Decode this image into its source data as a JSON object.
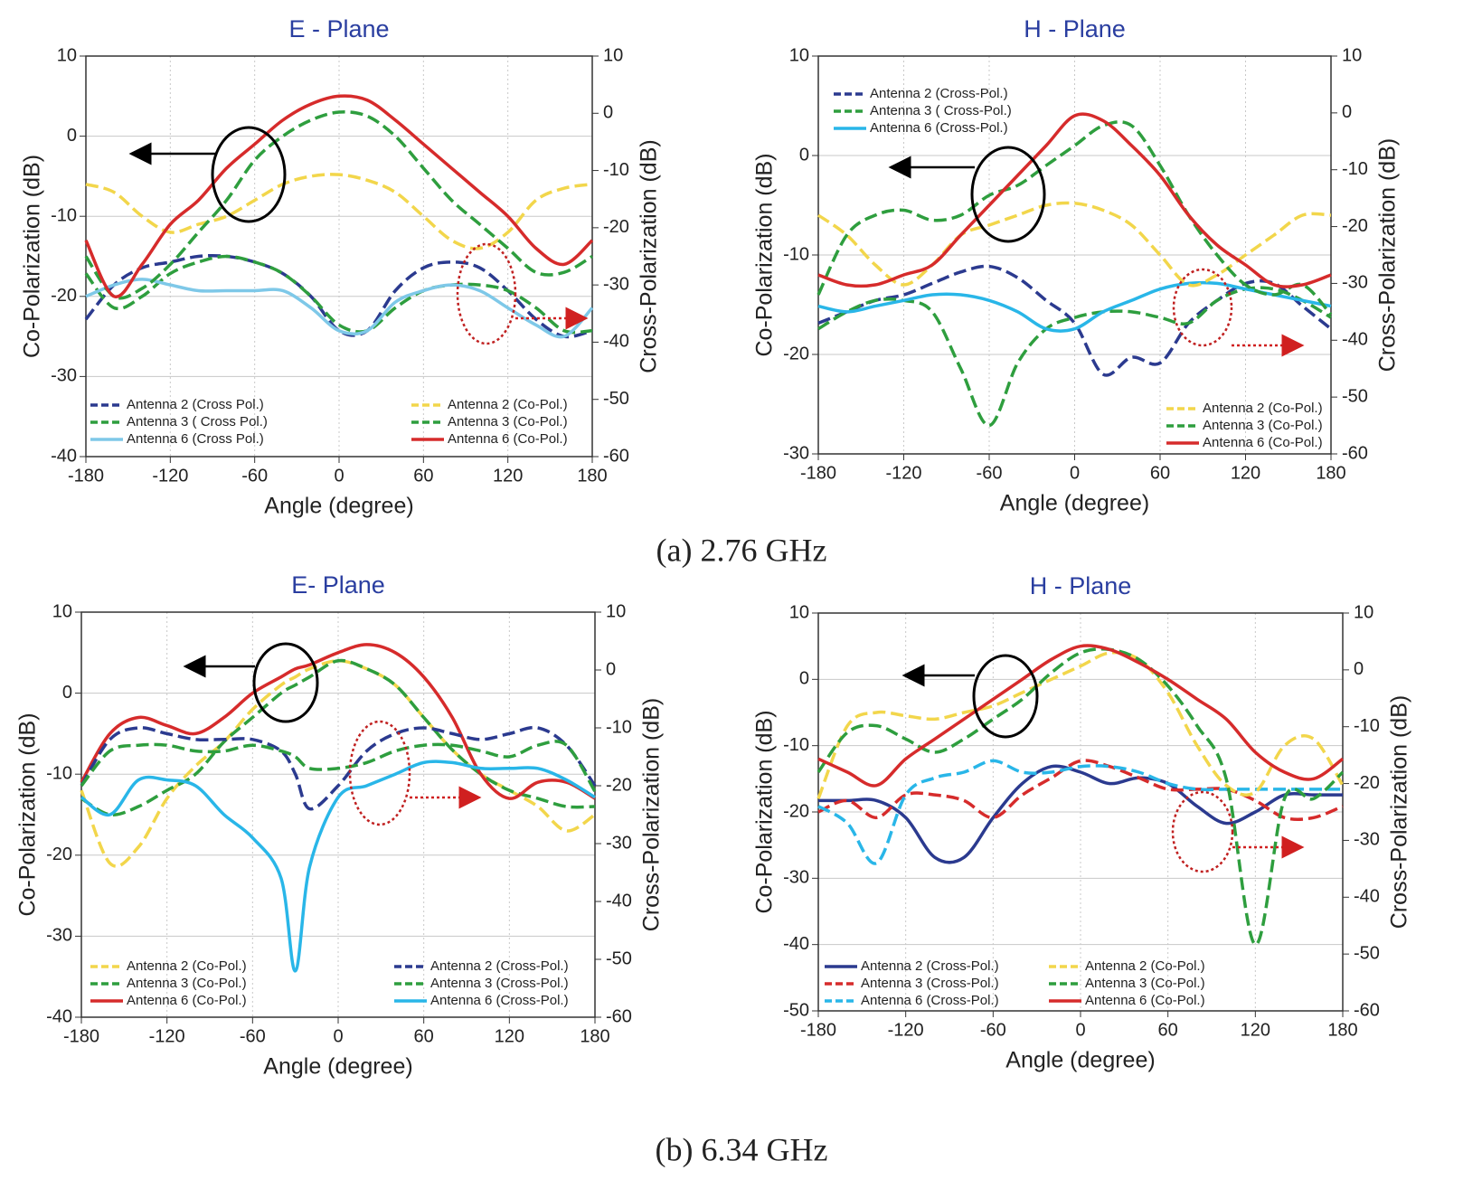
{
  "captions": [
    "(a) 2.76 GHz",
    "(b) 6.34 GHz"
  ],
  "chart_data": [
    {
      "type": "line",
      "title": "E - Plane",
      "xlabel": "Angle (degree)",
      "ylabel": "Co-Polarization (dB)",
      "y2label": "Cross-Polarization (dB)",
      "grid": true,
      "x": [
        -180,
        -160,
        -140,
        -120,
        -100,
        -80,
        -60,
        -40,
        -20,
        0,
        20,
        40,
        60,
        80,
        100,
        120,
        140,
        160,
        180
      ],
      "xlim": [
        -180,
        180
      ],
      "xticks": [
        -180,
        -120,
        -60,
        0,
        60,
        120,
        180
      ],
      "ylim": [
        -40,
        10
      ],
      "yticks": [
        -40,
        -30,
        -20,
        -10,
        0,
        10
      ],
      "y2lim": [
        -60,
        10
      ],
      "y2ticks": [
        -60,
        -50,
        -40,
        -30,
        -20,
        -10,
        0,
        10
      ],
      "series": [
        {
          "name": "Antenna 2 (Cross Pol.)",
          "color": "#2b3a8f",
          "dashed": true,
          "axis": "y2",
          "values": [
            -36,
            -30,
            -27,
            -26,
            -25,
            -25,
            -26,
            -28,
            -32,
            -38,
            -38,
            -31,
            -27,
            -26,
            -27,
            -31,
            -36,
            -39,
            -38
          ]
        },
        {
          "name": "Antenna 3 ( Cross Pol.)",
          "color": "#2e9e3e",
          "dashed": true,
          "axis": "y2",
          "values": [
            -28,
            -34,
            -32,
            -28,
            -26,
            -25,
            -26,
            -28,
            -32,
            -37,
            -38,
            -34,
            -31,
            -30,
            -30,
            -31,
            -34,
            -38,
            -38
          ]
        },
        {
          "name": "Antenna 6 (Cross Pol.)",
          "color": "#7ec8e8",
          "axis": "y2",
          "values": [
            -32,
            -30,
            -29,
            -30,
            -31,
            -31,
            -31,
            -31,
            -34,
            -38,
            -38,
            -33,
            -31,
            -30,
            -31,
            -34,
            -37,
            -39,
            -34
          ]
        },
        {
          "name": "Antenna 2 (Co-Pol.)",
          "color": "#f2d64b",
          "dashed": true,
          "values": [
            -6,
            -7,
            -10,
            -12,
            -11,
            -10,
            -8,
            -6,
            -5,
            -4.8,
            -5.5,
            -7,
            -10,
            -13,
            -14,
            -12,
            -8,
            -6.5,
            -6
          ]
        },
        {
          "name": "Antenna 3 (Co-Pol.)",
          "color": "#2e9e3e",
          "dashed": true,
          "values": [
            -15,
            -20,
            -19,
            -16,
            -12,
            -8,
            -3,
            0,
            2,
            3,
            2.5,
            0,
            -4,
            -8,
            -11,
            -14,
            -17,
            -17,
            -15
          ]
        },
        {
          "name": "Antenna 6 (Co-Pol.)",
          "color": "#d62b2b",
          "values": [
            -13,
            -20,
            -16,
            -11,
            -8,
            -4,
            -1,
            2,
            4,
            5,
            4.5,
            2,
            -1,
            -4,
            -7,
            -10,
            -14,
            -16,
            -13
          ]
        }
      ]
    },
    {
      "type": "line",
      "title": "H - Plane",
      "xlabel": "Angle (degree)",
      "ylabel": "Co-Polarization (dB)",
      "y2label": "Cross-Polarization (dB)",
      "grid": true,
      "x": [
        -180,
        -160,
        -140,
        -120,
        -100,
        -80,
        -60,
        -40,
        -20,
        0,
        20,
        40,
        60,
        80,
        100,
        120,
        140,
        160,
        180
      ],
      "xlim": [
        -180,
        180
      ],
      "xticks": [
        -180,
        -120,
        -60,
        0,
        60,
        120,
        180
      ],
      "ylim": [
        -30,
        10
      ],
      "yticks": [
        -30,
        -20,
        -10,
        0,
        10
      ],
      "y2lim": [
        -60,
        10
      ],
      "y2ticks": [
        -60,
        -50,
        -40,
        -30,
        -20,
        -10,
        0,
        10
      ],
      "series": [
        {
          "name": "Antenna 2 (Cross-Pol.)",
          "color": "#2b3a8f",
          "dashed": true,
          "axis": "y2",
          "values": [
            -37,
            -35,
            -33,
            -32,
            -30,
            -28,
            -27,
            -29,
            -33,
            -37,
            -46,
            -43,
            -44,
            -37,
            -33,
            -30,
            -30,
            -34,
            -38
          ]
        },
        {
          "name": "Antenna 3 ( Cross-Pol.)",
          "color": "#2e9e3e",
          "dashed": true,
          "axis": "y2",
          "values": [
            -38,
            -35,
            -33,
            -33,
            -35,
            -45,
            -55,
            -44,
            -38,
            -36,
            -35,
            -35,
            -36,
            -37,
            -33,
            -31,
            -31,
            -33,
            -36
          ]
        },
        {
          "name": "Antenna 6 (Cross-Pol.)",
          "color": "#29b6e8",
          "axis": "y2",
          "values": [
            -34,
            -35,
            -34,
            -33,
            -32,
            -32,
            -33,
            -35,
            -38,
            -38,
            -35,
            -33,
            -31,
            -30,
            -30,
            -31,
            -32,
            -33,
            -34
          ]
        },
        {
          "name": "Antenna 2 (Co-Pol.)",
          "color": "#f2d64b",
          "dashed": true,
          "values": [
            -6,
            -8,
            -11,
            -13,
            -11,
            -8,
            -7,
            -6,
            -5,
            -4.8,
            -5.5,
            -7,
            -10,
            -13,
            -12,
            -10,
            -8,
            -6,
            -6
          ]
        },
        {
          "name": "Antenna 3 (Co-Pol.)",
          "color": "#2e9e3e",
          "dashed": true,
          "values": [
            -14,
            -8,
            -6,
            -5.5,
            -6.5,
            -6,
            -4,
            -3,
            -1,
            1,
            3,
            3,
            -1,
            -6,
            -10,
            -13,
            -14,
            -13,
            -16
          ]
        },
        {
          "name": "Antenna 6 (Co-Pol.)",
          "color": "#d62b2b",
          "values": [
            -12,
            -13,
            -13,
            -12,
            -11,
            -8,
            -5,
            -2,
            1,
            4,
            3.5,
            1,
            -2,
            -6,
            -9,
            -11,
            -13,
            -13,
            -12
          ]
        }
      ]
    },
    {
      "type": "line",
      "title": "E- Plane",
      "xlabel": "Angle (degree)",
      "ylabel": "Co-Polarization (dB)",
      "y2label": "Cross-Polarization (dB)",
      "grid": true,
      "x": [
        -180,
        -160,
        -140,
        -120,
        -100,
        -80,
        -60,
        -40,
        -30,
        -20,
        0,
        20,
        40,
        60,
        80,
        100,
        120,
        140,
        160,
        180
      ],
      "xlim": [
        -180,
        180
      ],
      "xticks": [
        -180,
        -120,
        -60,
        0,
        60,
        120,
        180
      ],
      "ylim": [
        -40,
        10
      ],
      "yticks": [
        -40,
        -30,
        -20,
        -10,
        0,
        10
      ],
      "y2lim": [
        -60,
        10
      ],
      "y2ticks": [
        -60,
        -50,
        -40,
        -30,
        -20,
        -10,
        0,
        10
      ],
      "series": [
        {
          "name": "Antenna 2 (Co-Pol.)",
          "color": "#f2d64b",
          "dashed": true,
          "values": [
            -12,
            -21,
            -19,
            -13,
            -9,
            -6,
            -2,
            1,
            2,
            3,
            4,
            3,
            1,
            -3,
            -7,
            -10,
            -12,
            -14,
            -17,
            -15
          ]
        },
        {
          "name": "Antenna 3 (Co-Pol.)",
          "color": "#2e9e3e",
          "dashed": true,
          "values": [
            -13,
            -15,
            -14,
            -12,
            -10,
            -6,
            -3,
            0,
            1,
            2,
            4,
            3,
            1,
            -3,
            -7,
            -10,
            -12,
            -13,
            -14,
            -14
          ]
        },
        {
          "name": "Antenna 6 (Co-Pol.)",
          "color": "#d62b2b",
          "values": [
            -11,
            -5,
            -3,
            -4,
            -5,
            -3,
            0,
            2,
            3,
            3.5,
            5,
            6,
            5,
            2,
            -3,
            -10,
            -13,
            -11,
            -11,
            -13
          ]
        },
        {
          "name": "Antenna 2 (Cross-Pol.)",
          "color": "#2b3a8f",
          "dashed": true,
          "axis": "y2",
          "values": [
            -20,
            -12,
            -10,
            -11,
            -12,
            -12,
            -12,
            -14,
            -18,
            -24,
            -20,
            -14,
            -11,
            -10,
            -11,
            -12,
            -11,
            -10,
            -13,
            -20
          ]
        },
        {
          "name": "Antenna 3 (Cross-Pol.)",
          "color": "#2e9e3e",
          "dashed": true,
          "axis": "y2",
          "values": [
            -20,
            -14,
            -13,
            -13,
            -14,
            -14,
            -13,
            -14,
            -15,
            -17,
            -17,
            -16,
            -14,
            -13,
            -13,
            -14,
            -15,
            -13,
            -13,
            -21
          ]
        },
        {
          "name": "Antenna 6 (Cross-Pol.)",
          "color": "#29b6e8",
          "axis": "y2",
          "values": [
            -22,
            -25,
            -19,
            -19,
            -20,
            -25,
            -29,
            -36,
            -52,
            -34,
            -22,
            -20,
            -18,
            -16,
            -16,
            -17,
            -17,
            -17,
            -19,
            -22
          ]
        }
      ]
    },
    {
      "type": "line",
      "title": "H - Plane",
      "xlabel": "Angle (degree)",
      "ylabel": "Co-Polarization (dB)",
      "y2label": "Cross-Polarization (dB)",
      "grid": true,
      "x": [
        -180,
        -160,
        -140,
        -120,
        -100,
        -80,
        -60,
        -40,
        -20,
        0,
        20,
        40,
        60,
        80,
        100,
        120,
        140,
        160,
        180
      ],
      "xlim": [
        -180,
        180
      ],
      "xticks": [
        -180,
        -120,
        -60,
        0,
        60,
        120,
        180
      ],
      "ylim": [
        -50,
        10
      ],
      "yticks": [
        -50,
        -40,
        -30,
        -20,
        -10,
        0,
        10
      ],
      "y2lim": [
        -60,
        10
      ],
      "y2ticks": [
        -60,
        -50,
        -40,
        -30,
        -20,
        -10,
        0,
        10
      ],
      "series": [
        {
          "name": "Antenna 2 (Cross-Pol.)",
          "color": "#2b3a8f",
          "axis": "y2",
          "values": [
            -23,
            -23,
            -23,
            -26,
            -33,
            -33,
            -26,
            -20,
            -17,
            -18,
            -20,
            -19,
            -20,
            -24,
            -27,
            -25,
            -22,
            -22,
            -22
          ]
        },
        {
          "name": "Antenna 3 (Cross-Pol.)",
          "color": "#d62b2b",
          "dashed": true,
          "axis": "y2",
          "values": [
            -25,
            -23,
            -26,
            -22,
            -22,
            -23,
            -26,
            -22,
            -19,
            -16,
            -17,
            -19,
            -21,
            -21,
            -21,
            -23,
            -26,
            -26,
            -24
          ]
        },
        {
          "name": "Antenna 6 (Cross-Pol.)",
          "color": "#29b6e8",
          "dashed": true,
          "axis": "y2",
          "values": [
            -24,
            -27,
            -34,
            -22,
            -19,
            -18,
            -16,
            -18,
            -18,
            -17,
            -17,
            -18,
            -20,
            -21,
            -21,
            -21,
            -21,
            -21,
            -21
          ]
        },
        {
          "name": "Antenna 2 (Co-Pol.)",
          "color": "#f2d64b",
          "dashed": true,
          "values": [
            -18,
            -7,
            -5,
            -5.5,
            -6,
            -5,
            -4,
            -2,
            0,
            2,
            4,
            3,
            -2,
            -10,
            -16,
            -17,
            -10,
            -9,
            -16
          ]
        },
        {
          "name": "Antenna 3 (Co-Pol.)",
          "color": "#2e9e3e",
          "dashed": true,
          "values": [
            -14,
            -8,
            -7,
            -9,
            -11,
            -9,
            -6,
            -3,
            1,
            4,
            4.5,
            3,
            -1,
            -7,
            -15,
            -40,
            -18,
            -18,
            -14
          ]
        },
        {
          "name": "Antenna 6 (Co-Pol.)",
          "color": "#d62b2b",
          "values": [
            -12,
            -14,
            -16,
            -12,
            -9,
            -6,
            -3,
            0,
            3,
            5,
            4.5,
            2.5,
            0,
            -3,
            -6,
            -11,
            -14,
            -15,
            -12
          ]
        }
      ]
    }
  ]
}
